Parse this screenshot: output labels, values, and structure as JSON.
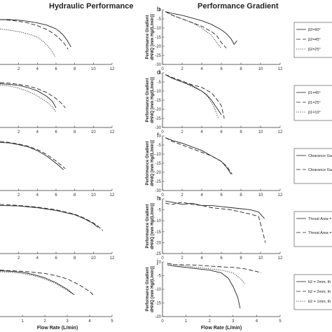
{
  "figure": {
    "left_title": "Hydraulic Performance",
    "right_title": "Performance Gradient",
    "x_label": "Flow Rate (L/min)"
  },
  "chart_data": [
    {
      "id": "a",
      "type": "line",
      "column": "left",
      "letter": "",
      "xlim": [
        0,
        12
      ],
      "xticks": [
        2,
        4,
        6,
        8,
        10,
        12
      ],
      "yticks": [],
      "series": [
        {
          "style": "solid",
          "x": [
            0,
            1,
            2,
            3,
            4,
            5,
            6,
            6.4,
            6.8,
            7.2,
            7.6
          ],
          "y": [
            0.82,
            0.82,
            0.81,
            0.79,
            0.76,
            0.72,
            0.65,
            0.6,
            0.53,
            0.44,
            0.32
          ]
        },
        {
          "style": "dashed",
          "x": [
            0,
            1,
            2,
            3,
            4,
            5,
            5.6,
            6.2,
            6.8,
            7.3
          ],
          "y": [
            0.82,
            0.81,
            0.79,
            0.76,
            0.71,
            0.64,
            0.58,
            0.5,
            0.4,
            0.28
          ]
        },
        {
          "style": "dotted",
          "x": [
            0,
            1,
            2,
            3,
            4,
            4.5,
            5,
            5.5,
            5.9
          ],
          "y": [
            0.65,
            0.63,
            0.6,
            0.56,
            0.5,
            0.44,
            0.36,
            0.26,
            0.14
          ]
        }
      ]
    },
    {
      "id": "b",
      "type": "line",
      "column": "right",
      "letter": "b",
      "xlim": [
        0,
        12
      ],
      "ylim": [
        -30,
        0
      ],
      "xticks": [
        0,
        2,
        4,
        6,
        8,
        10,
        12
      ],
      "yticks": [
        0,
        -5,
        -10,
        -15,
        -20,
        -25,
        -30
      ],
      "xlabel": "",
      "ylabel": "Performance Gradient dH/dQ [mm Hg/(L/min)]",
      "legend": [
        "β2=90°",
        "β2=45°",
        "β2=25°"
      ],
      "series": [
        {
          "name": "β2=90°",
          "style": "solid",
          "x": [
            0.3,
            1,
            2,
            3,
            4,
            5,
            6,
            6.5,
            7,
            7.3,
            7.6
          ],
          "y": [
            -1,
            -2,
            -3,
            -4.5,
            -6,
            -8,
            -11,
            -13,
            -16,
            -19,
            -17
          ]
        },
        {
          "name": "β2=45°",
          "style": "dashed",
          "x": [
            0.3,
            1,
            2,
            3,
            4,
            5,
            5.5,
            6,
            6.5
          ],
          "y": [
            -1,
            -3,
            -5,
            -7,
            -9,
            -12,
            -14,
            -18,
            -21
          ]
        },
        {
          "name": "β2=25°",
          "style": "dotted",
          "x": [
            0.3,
            1,
            2,
            3,
            4,
            5,
            5.4,
            5.8,
            6
          ],
          "y": [
            -1,
            -3,
            -5,
            -7,
            -10,
            -14,
            -17,
            -20,
            -21
          ]
        }
      ]
    },
    {
      "id": "c",
      "type": "line",
      "column": "left",
      "letter": "",
      "xlim": [
        0,
        12
      ],
      "xticks": [
        2,
        4,
        6,
        8,
        10,
        12
      ],
      "yticks": [],
      "series": [
        {
          "style": "solid",
          "x": [
            0,
            1,
            2,
            3,
            4,
            5,
            5.6,
            6
          ],
          "y": [
            0.8,
            0.79,
            0.77,
            0.73,
            0.67,
            0.57,
            0.48,
            0.36
          ]
        },
        {
          "style": "dashed",
          "x": [
            0,
            1,
            2,
            3,
            4,
            5,
            6,
            6.6,
            7
          ],
          "y": [
            0.82,
            0.81,
            0.79,
            0.76,
            0.71,
            0.64,
            0.53,
            0.44,
            0.36
          ]
        },
        {
          "style": "dotted",
          "x": [
            0,
            1,
            2,
            3,
            4,
            5,
            5.6,
            6
          ],
          "y": [
            0.78,
            0.76,
            0.72,
            0.66,
            0.58,
            0.47,
            0.38,
            0.28
          ]
        }
      ]
    },
    {
      "id": "d",
      "type": "line",
      "column": "right",
      "letter": "d",
      "xlim": [
        0,
        12
      ],
      "ylim": [
        -30,
        0
      ],
      "xticks": [
        0,
        2,
        4,
        6,
        8,
        10,
        12
      ],
      "yticks": [
        0,
        -5,
        -10,
        -15,
        -20,
        -25,
        -30
      ],
      "xlabel": "",
      "ylabel": "Performance Gradient dH/dQ [mm Hg/(L/min)]",
      "legend": [
        "β1=45°",
        "β1=25°",
        "β1=10°"
      ],
      "series": [
        {
          "name": "β1=45°",
          "style": "solid",
          "x": [
            0.3,
            1,
            2,
            3,
            4,
            4.5,
            5,
            5.5,
            6
          ],
          "y": [
            -1,
            -3,
            -5,
            -7,
            -10,
            -12,
            -15,
            -19,
            -23
          ]
        },
        {
          "name": "β1=25°",
          "style": "dashed",
          "x": [
            0.3,
            1,
            2,
            3,
            4,
            5,
            5.6,
            6,
            6.3
          ],
          "y": [
            -1,
            -2.5,
            -4.5,
            -6.5,
            -8,
            -11,
            -15,
            -18,
            -25
          ]
        },
        {
          "name": "β1=10°",
          "style": "dotted",
          "x": [
            0.3,
            1,
            2,
            3,
            4,
            4.6,
            5.2,
            5.7
          ],
          "y": [
            -1,
            -3,
            -5,
            -7.5,
            -10,
            -13,
            -18,
            -25
          ]
        }
      ]
    },
    {
      "id": "e",
      "type": "line",
      "column": "left",
      "letter": "",
      "xlim": [
        0,
        12
      ],
      "xticks": [
        2,
        4,
        6,
        8,
        10,
        12
      ],
      "yticks": [],
      "series": [
        {
          "style": "solid",
          "x": [
            0,
            1,
            2,
            3,
            4,
            5,
            6,
            6.8
          ],
          "y": [
            0.88,
            0.87,
            0.84,
            0.8,
            0.73,
            0.63,
            0.5,
            0.38
          ]
        },
        {
          "style": "dashed",
          "x": [
            0,
            1,
            2,
            3,
            4,
            5,
            6,
            7
          ],
          "y": [
            0.9,
            0.88,
            0.85,
            0.81,
            0.75,
            0.66,
            0.54,
            0.4
          ]
        }
      ]
    },
    {
      "id": "f",
      "type": "line",
      "column": "right",
      "letter": "f",
      "xlim": [
        0,
        12
      ],
      "ylim": [
        -30,
        0
      ],
      "xticks": [
        0,
        2,
        4,
        6,
        8,
        10,
        12
      ],
      "yticks": [
        0,
        -5,
        -10,
        -15,
        -20,
        -25,
        -30
      ],
      "xlabel": "",
      "ylabel": "Performance Gradient dH/dQ [mm Hg/(L/min)]",
      "legend": [
        "Clearance Ga",
        "Clearance Ga"
      ],
      "series": [
        {
          "name": "Clearance Ga",
          "style": "solid",
          "x": [
            0.3,
            1,
            2,
            3,
            4,
            5,
            6,
            6.5,
            7
          ],
          "y": [
            -1,
            -2.5,
            -4,
            -6,
            -8,
            -11,
            -14,
            -17,
            -21
          ]
        },
        {
          "name": "Clearance Ga",
          "style": "dashed",
          "x": [
            0.3,
            1,
            2,
            3,
            4,
            5,
            6,
            6.6,
            7.1
          ],
          "y": [
            -1,
            -3,
            -5,
            -7,
            -9,
            -11,
            -14,
            -17,
            -21
          ]
        }
      ]
    },
    {
      "id": "g",
      "type": "line",
      "column": "left",
      "letter": "",
      "xlim": [
        0,
        12
      ],
      "xticks": [
        2,
        4,
        6,
        8,
        10,
        12
      ],
      "yticks": [],
      "series": [
        {
          "style": "solid",
          "x": [
            0,
            2,
            4,
            6,
            8,
            9,
            10,
            10.5
          ],
          "y": [
            0.88,
            0.87,
            0.84,
            0.79,
            0.71,
            0.64,
            0.55,
            0.48
          ]
        },
        {
          "style": "dashed",
          "x": [
            0,
            2,
            4,
            6,
            8,
            9,
            10,
            10.5,
            11
          ],
          "y": [
            0.9,
            0.88,
            0.85,
            0.8,
            0.72,
            0.65,
            0.56,
            0.5,
            0.42
          ]
        }
      ]
    },
    {
      "id": "h",
      "type": "line",
      "column": "right",
      "letter": "h",
      "xlim": [
        0,
        12
      ],
      "ylim": [
        -25,
        0
      ],
      "xticks": [
        0,
        2,
        4,
        6,
        8,
        10,
        12
      ],
      "yticks": [
        0,
        -5,
        -10,
        -15,
        -20,
        -25
      ],
      "xlabel": "",
      "ylabel": "Performance Gradient dH/dQ [mm Hg/(L/min)]",
      "legend": [
        "Throat Area =",
        "Throat Area ="
      ],
      "series": [
        {
          "name": "Throat Area =",
          "style": "solid",
          "x": [
            0.3,
            1,
            2,
            3,
            4,
            5,
            6,
            7,
            8,
            9,
            9.8,
            10.4
          ],
          "y": [
            -1,
            -1.5,
            -2.5,
            -2,
            -3,
            -3,
            -3.5,
            -4,
            -4.5,
            -5,
            -6,
            -9
          ]
        },
        {
          "name": "Throat Area =",
          "style": "dashed",
          "x": [
            0.3,
            1,
            2,
            3,
            4,
            5,
            6,
            7,
            8,
            9,
            9.8,
            10.5
          ],
          "y": [
            -2,
            -2.5,
            -1.5,
            -2.5,
            -3,
            -4,
            -4.5,
            -5,
            -6,
            -7,
            -8,
            -20
          ]
        }
      ]
    },
    {
      "id": "i",
      "type": "line",
      "column": "left",
      "letter": "",
      "xlim": [
        0,
        5
      ],
      "xticks": [
        1,
        2,
        3,
        4,
        5
      ],
      "yticks": [],
      "series": [
        {
          "style": "solid",
          "x": [
            0,
            0.5,
            1,
            1.5,
            2,
            2.5,
            3,
            3.3
          ],
          "y": [
            0.84,
            0.83,
            0.81,
            0.77,
            0.71,
            0.62,
            0.5,
            0.4
          ]
        },
        {
          "style": "dashed",
          "x": [
            0,
            1,
            2,
            2.5,
            3,
            3.5,
            4,
            4.2
          ],
          "y": [
            0.85,
            0.83,
            0.79,
            0.75,
            0.69,
            0.59,
            0.46,
            0.38
          ]
        },
        {
          "style": "dotted",
          "x": [
            0,
            0.5,
            1,
            1.5,
            2,
            2.5,
            3,
            3.3
          ],
          "y": [
            0.82,
            0.81,
            0.79,
            0.75,
            0.69,
            0.6,
            0.48,
            0.4
          ]
        }
      ]
    },
    {
      "id": "j",
      "type": "line",
      "column": "right",
      "letter": "j",
      "xlim": [
        0,
        5
      ],
      "ylim": [
        -20,
        0
      ],
      "xticks": [
        0,
        1,
        2,
        3,
        4,
        5
      ],
      "yticks": [
        0,
        -5,
        -10,
        -15,
        -20
      ],
      "xlabel": "Flow Rate (L/min)",
      "ylabel": "Performance Gradient dH/dQ [mm Hg/(L/min)]",
      "legend": [
        "b2 = 2mm, th",
        "b2 = 2mm, th",
        "b2 = 1mm, th"
      ],
      "series": [
        {
          "name": "b2 = 2mm, th",
          "style": "solid",
          "x": [
            0.2,
            0.5,
            1,
            1.5,
            2,
            2.5,
            2.8,
            3,
            3.2,
            3.3
          ],
          "y": [
            -1,
            -1.5,
            -2,
            -2.5,
            -3,
            -4,
            -6,
            -9,
            -13,
            -17
          ]
        },
        {
          "name": "b2 = 2mm, th",
          "style": "dashed",
          "x": [
            0.2,
            0.5,
            1,
            1.5,
            2,
            2.5,
            3,
            3.5,
            4,
            4.2
          ],
          "y": [
            -0.5,
            -1,
            -1,
            -1.2,
            -1.5,
            -1.8,
            -2,
            -2.5,
            -3.5,
            -4
          ]
        },
        {
          "name": "b2 = 1mm, th",
          "style": "dotted",
          "x": [
            0.2,
            0.5,
            1,
            1.5,
            2,
            2.5,
            3,
            3.3,
            3.5
          ],
          "y": [
            -0.5,
            -1,
            -1.5,
            -2,
            -2.5,
            -3,
            -4,
            -6,
            -8
          ]
        }
      ]
    }
  ]
}
